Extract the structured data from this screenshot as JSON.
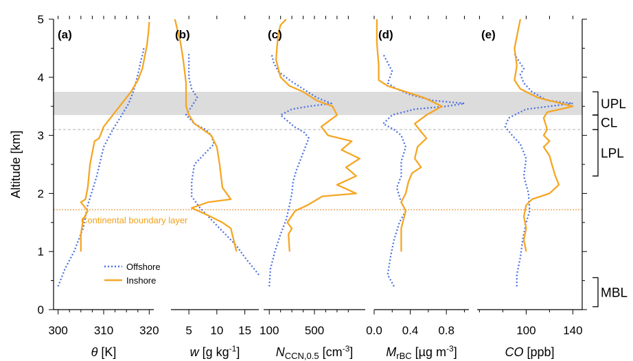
{
  "colors": {
    "offshore": "#4a6fe3",
    "inshore": "#f5a623",
    "band": "#dcdcdc",
    "cl_line": "#b0b0b0",
    "cbl_line": "#e07b1a"
  },
  "yaxis": {
    "label": "Altitude [km]",
    "ticks": [
      "0",
      "1",
      "2",
      "3",
      "4",
      "5"
    ]
  },
  "chart_data": [
    {
      "type": "line",
      "panel": "(a)",
      "xlabel_main": "θ",
      "xlabel_unit": " [K]",
      "xlim": [
        299,
        321
      ],
      "ylim": [
        0,
        5
      ],
      "xticks": [
        {
          "v": 300,
          "t": "300"
        },
        {
          "v": 310,
          "t": "310"
        },
        {
          "v": 320,
          "t": "320"
        }
      ],
      "minor": [
        302.5,
        305,
        307.5,
        312.5,
        315,
        317.5
      ],
      "series": [
        {
          "name": "Offshore",
          "x": [
            300.0,
            301.5,
            303.5,
            305.5,
            306.5,
            308.5,
            310.0,
            312.0,
            314.0,
            315.5,
            316.5,
            317.2,
            317.8,
            318.2,
            318.6,
            318.8
          ],
          "y": [
            0.4,
            0.7,
            1.0,
            1.4,
            1.8,
            2.3,
            2.8,
            3.1,
            3.35,
            3.55,
            3.75,
            3.95,
            4.15,
            4.3,
            4.4,
            4.5
          ]
        },
        {
          "name": "Inshore",
          "x": [
            305.0,
            305.0,
            305.5,
            306.5,
            305.0,
            306.0,
            306.5,
            307.0,
            308.0,
            309.0,
            310.0,
            312.0,
            314.0,
            316.0,
            317.5,
            318.5,
            319.0,
            319.5,
            319.8,
            320.0
          ],
          "y": [
            1.0,
            1.3,
            1.55,
            1.7,
            1.85,
            1.9,
            2.1,
            2.5,
            2.9,
            2.95,
            3.15,
            3.35,
            3.55,
            3.75,
            3.95,
            4.15,
            4.35,
            4.55,
            4.75,
            4.95
          ]
        }
      ]
    },
    {
      "type": "line",
      "panel": "(b)",
      "xlabel_main": "w",
      "xlabel_unit": " [g kg",
      "xlim": [
        1.8,
        17.5
      ],
      "ylim": [
        0,
        5
      ],
      "xticks": [
        {
          "v": 5,
          "t": "5"
        },
        {
          "v": 10,
          "t": "10"
        },
        {
          "v": 15,
          "t": "15"
        }
      ],
      "minor": [],
      "series": [
        {
          "name": "Offshore",
          "x": [
            17.5,
            15.0,
            13.5,
            12.0,
            10.5,
            9.0,
            7.0,
            5.5,
            5.5,
            6.0,
            8.0,
            9.5,
            9.0,
            8.0,
            6.0,
            4.5,
            5.5,
            6.5,
            5.5,
            5.0,
            5.0
          ],
          "y": [
            0.6,
            0.9,
            1.1,
            1.25,
            1.4,
            1.55,
            1.75,
            1.95,
            2.2,
            2.5,
            2.7,
            2.85,
            3.0,
            3.1,
            3.2,
            3.35,
            3.5,
            3.65,
            3.8,
            4.0,
            4.4
          ]
        },
        {
          "name": "Inshore",
          "x": [
            13.5,
            13.0,
            12.5,
            11.0,
            8.5,
            5.5,
            8.5,
            12.5,
            11.0,
            10.5,
            10.0,
            9.0,
            7.5,
            6.0,
            5.0,
            4.5,
            4.5,
            4.5,
            4.0,
            3.5,
            3.0,
            2.5
          ],
          "y": [
            1.0,
            1.2,
            1.4,
            1.5,
            1.62,
            1.75,
            1.85,
            1.9,
            2.1,
            2.5,
            2.8,
            3.0,
            3.1,
            3.2,
            3.35,
            3.5,
            3.7,
            3.9,
            4.3,
            4.6,
            4.8,
            5.0
          ]
        }
      ]
    },
    {
      "type": "line",
      "panel": "(c)",
      "xlabel_main": "N",
      "xlabel_sub": "CCN,0.5",
      "xlabel_unit": " [cm",
      "xlim": [
        50,
        950
      ],
      "ylim": [
        0,
        5
      ],
      "xticks": [
        {
          "v": 100,
          "t": "100"
        },
        {
          "v": 500,
          "t": "500"
        }
      ],
      "minor": [
        200,
        300,
        400,
        600,
        700,
        800
      ],
      "series": [
        {
          "name": "Offshore",
          "x": [
            100,
            110,
            150,
            200,
            250,
            280,
            300,
            310,
            340,
            380,
            420,
            450,
            410,
            320,
            230,
            200,
            300,
            450,
            650,
            520,
            400,
            280,
            180,
            140,
            120
          ],
          "y": [
            0.4,
            0.7,
            1.0,
            1.3,
            1.55,
            1.8,
            2.0,
            2.2,
            2.4,
            2.6,
            2.8,
            2.95,
            3.05,
            3.15,
            3.3,
            3.35,
            3.45,
            3.5,
            3.55,
            3.65,
            3.8,
            3.95,
            4.1,
            4.25,
            4.4
          ]
        },
        {
          "name": "Inshore",
          "x": [
            280,
            270,
            300,
            260,
            330,
            440,
            570,
            870,
            700,
            870,
            780,
            900,
            740,
            830,
            620,
            560,
            700,
            660,
            520,
            400,
            280,
            200,
            160,
            170,
            180,
            200,
            250
          ],
          "y": [
            1.0,
            1.3,
            1.4,
            1.5,
            1.7,
            1.8,
            1.95,
            2.0,
            2.15,
            2.3,
            2.45,
            2.6,
            2.75,
            2.9,
            3.0,
            3.15,
            3.35,
            3.5,
            3.6,
            3.75,
            3.85,
            4.0,
            4.3,
            4.55,
            4.75,
            4.9,
            5.0
          ]
        }
      ]
    },
    {
      "type": "line",
      "panel": "(d)",
      "xlabel_main": "M",
      "xlabel_sub": "rBC",
      "xlabel_unit": " [µg m",
      "xlim": [
        0,
        1.05
      ],
      "ylim": [
        0,
        5
      ],
      "xticks": [
        {
          "v": 0,
          "t": "0.0"
        },
        {
          "v": 0.4,
          "t": "0.4"
        },
        {
          "v": 0.8,
          "t": "0.8"
        }
      ],
      "minor": [
        0.2,
        0.6,
        1.0
      ],
      "series": [
        {
          "name": "Offshore",
          "x": [
            0.22,
            0.15,
            0.18,
            0.22,
            0.28,
            0.35,
            0.3,
            0.25,
            0.3,
            0.3,
            0.35,
            0.3,
            0.22,
            0.1,
            0.2,
            0.45,
            0.8,
            1.0,
            0.65,
            0.4,
            0.25,
            0.15,
            0.2,
            0.15,
            0.1
          ],
          "y": [
            0.4,
            0.6,
            0.9,
            1.2,
            1.5,
            1.7,
            1.85,
            2.1,
            2.3,
            2.55,
            2.8,
            3.0,
            3.1,
            3.2,
            3.35,
            3.45,
            3.5,
            3.55,
            3.6,
            3.7,
            3.8,
            3.9,
            4.1,
            4.25,
            4.4
          ]
        },
        {
          "name": "Inshore",
          "x": [
            0.3,
            0.3,
            0.35,
            0.3,
            0.35,
            0.38,
            0.42,
            0.52,
            0.45,
            0.48,
            0.58,
            0.5,
            0.45,
            0.58,
            0.75,
            0.55,
            0.35,
            0.15,
            0.05,
            0.05,
            0.03,
            0.03
          ],
          "y": [
            1.0,
            1.4,
            1.7,
            1.85,
            2.0,
            2.2,
            2.35,
            2.45,
            2.6,
            2.8,
            2.95,
            3.1,
            3.2,
            3.35,
            3.5,
            3.65,
            3.75,
            3.85,
            3.95,
            4.2,
            4.6,
            5.0
          ]
        }
      ]
    },
    {
      "type": "line",
      "panel": "(e)",
      "xlabel_main": "CO",
      "xlabel_unit": " [ppb]",
      "xlim": [
        58,
        148
      ],
      "ylim": [
        0,
        5
      ],
      "xticks": [
        {
          "v": 100,
          "t": "100"
        },
        {
          "v": 140,
          "t": "140"
        }
      ],
      "minor": [
        60,
        80,
        120
      ],
      "series": [
        {
          "name": "Offshore",
          "x": [
            92,
            92,
            95,
            97,
            100,
            103,
            102,
            98,
            100,
            95,
            88,
            82,
            85,
            100,
            120,
            140,
            118,
            105,
            98,
            95,
            98,
            93,
            90
          ],
          "y": [
            0.4,
            0.6,
            0.9,
            1.2,
            1.5,
            1.7,
            2.0,
            2.3,
            2.6,
            2.85,
            3.0,
            3.15,
            3.3,
            3.45,
            3.5,
            3.55,
            3.6,
            3.75,
            3.9,
            4.05,
            4.15,
            4.3,
            4.4
          ]
        },
        {
          "name": "Inshore",
          "x": [
            100,
            98,
            100,
            98,
            100,
            105,
            120,
            128,
            125,
            122,
            120,
            115,
            120,
            115,
            118,
            115,
            118,
            140,
            110,
            95,
            90,
            92,
            90,
            93,
            95
          ],
          "y": [
            1.0,
            1.2,
            1.4,
            1.6,
            1.8,
            1.9,
            2.0,
            2.15,
            2.3,
            2.5,
            2.65,
            2.8,
            2.9,
            3.0,
            3.1,
            3.3,
            3.4,
            3.5,
            3.65,
            3.8,
            3.95,
            4.2,
            4.5,
            4.8,
            5.0
          ]
        }
      ]
    }
  ],
  "bands": {
    "upl": [
      3.35,
      3.75
    ],
    "cl_line": 3.1,
    "cbl_line": 1.72
  },
  "boundary_label": "Continental boundary layer",
  "legend": {
    "offshore": "Offshore",
    "inshore": "Inshore"
  },
  "layers": [
    {
      "label": "UPL",
      "y0": 3.35,
      "y1": 3.75
    },
    {
      "label": "CL",
      "y0": 3.1,
      "y1": 3.35
    },
    {
      "label": "LPL",
      "y0": 2.3,
      "y1": 3.1
    },
    {
      "label": "MBL",
      "y0": 0.05,
      "y1": 0.55
    }
  ],
  "unit_sup": "-1",
  "unit_sup3": "-3",
  "unit_close": "]"
}
